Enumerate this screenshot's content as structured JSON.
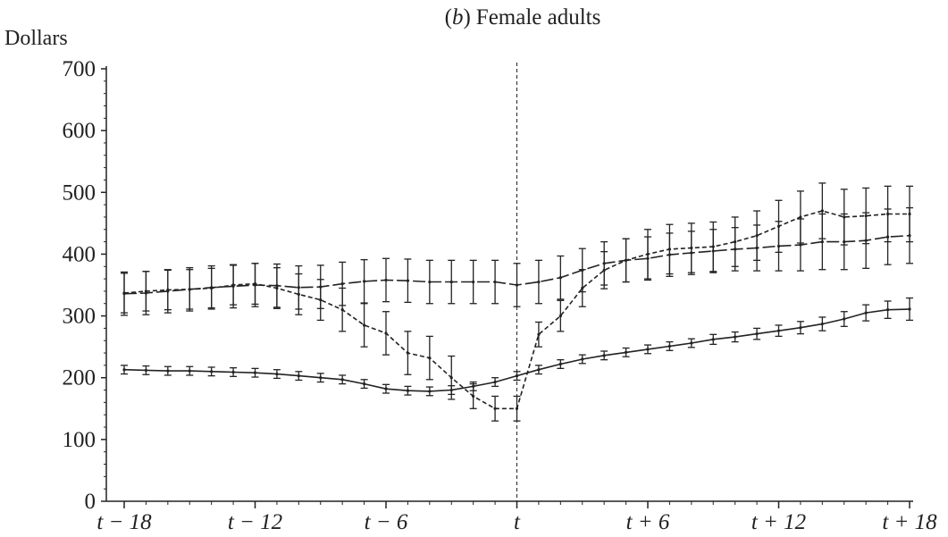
{
  "chart_data": {
    "type": "line",
    "title_prefix": "(b)",
    "title_text": "Female adults",
    "ylabel": "Dollars",
    "xlabel": "",
    "ylim": [
      0,
      700
    ],
    "xlim": [
      -18,
      18
    ],
    "grid": false,
    "event_marker_x": 0,
    "y_ticks": [
      0,
      100,
      200,
      300,
      400,
      500,
      600,
      700
    ],
    "x_ticks": [
      {
        "x": -18,
        "label": "t − 18"
      },
      {
        "x": -12,
        "label": "t − 12"
      },
      {
        "x": -6,
        "label": "t − 6"
      },
      {
        "x": 0,
        "label": "t"
      },
      {
        "x": 6,
        "label": "t + 6"
      },
      {
        "x": 12,
        "label": "t + 12"
      },
      {
        "x": 18,
        "label": "t + 18"
      }
    ],
    "x": [
      -18,
      -17,
      -16,
      -15,
      -14,
      -13,
      -12,
      -11,
      -10,
      -9,
      -8,
      -7,
      -6,
      -5,
      -4,
      -3,
      -2,
      -1,
      0,
      1,
      2,
      3,
      4,
      5,
      6,
      7,
      8,
      9,
      10,
      11,
      12,
      13,
      14,
      15,
      16,
      17,
      18
    ],
    "series": [
      {
        "style": "solid",
        "values": [
          213,
          212,
          211,
          211,
          210,
          209,
          208,
          206,
          203,
          200,
          197,
          190,
          182,
          179,
          178,
          180,
          186,
          193,
          203,
          213,
          222,
          230,
          236,
          241,
          246,
          251,
          256,
          262,
          266,
          271,
          276,
          281,
          287,
          295,
          305,
          310,
          311
        ],
        "errors": [
          7,
          7,
          7,
          7,
          7,
          7,
          7,
          7,
          7,
          7,
          7,
          7,
          7,
          7,
          7,
          7,
          7,
          7,
          7,
          7,
          7,
          7,
          7,
          7,
          7,
          7,
          7,
          8,
          8,
          9,
          9,
          10,
          11,
          12,
          13,
          14,
          18
        ]
      },
      {
        "style": "long-dash",
        "values": [
          336,
          337,
          340,
          343,
          346,
          348,
          350,
          349,
          346,
          347,
          352,
          356,
          358,
          357,
          355,
          355,
          355,
          355,
          350,
          355,
          362,
          374,
          385,
          390,
          393,
          399,
          402,
          405,
          408,
          410,
          413,
          415,
          420,
          420,
          422,
          428,
          430
        ],
        "errors": [
          35,
          35,
          35,
          35,
          35,
          35,
          35,
          35,
          35,
          35,
          35,
          35,
          35,
          35,
          35,
          35,
          35,
          35,
          35,
          35,
          35,
          35,
          35,
          35,
          35,
          35,
          35,
          35,
          35,
          37,
          40,
          42,
          45,
          45,
          45,
          45,
          45
        ]
      },
      {
        "style": "short-dash",
        "values": [
          337,
          340,
          342,
          343,
          345,
          350,
          352,
          345,
          335,
          326,
          310,
          285,
          272,
          240,
          232,
          200,
          170,
          150,
          150,
          270,
          300,
          345,
          374,
          390,
          400,
          408,
          410,
          412,
          420,
          430,
          445,
          460,
          470,
          460,
          462,
          465,
          465
        ],
        "errors": [
          32,
          32,
          32,
          32,
          32,
          32,
          33,
          33,
          33,
          33,
          35,
          35,
          35,
          35,
          35,
          35,
          20,
          20,
          20,
          20,
          25,
          30,
          30,
          35,
          40,
          40,
          40,
          40,
          40,
          40,
          42,
          42,
          45,
          45,
          45,
          45,
          45
        ]
      }
    ]
  }
}
